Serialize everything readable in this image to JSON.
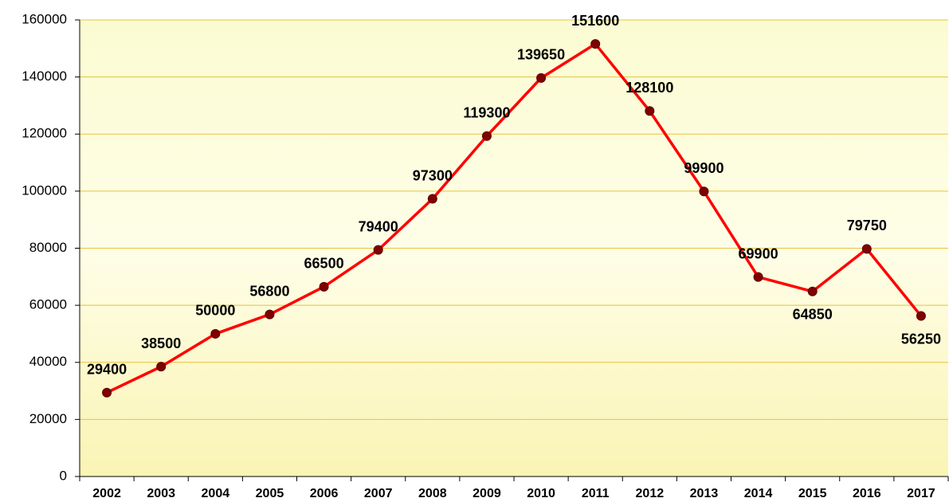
{
  "chart_data": {
    "type": "line",
    "categories": [
      "2002",
      "2003",
      "2004",
      "2005",
      "2006",
      "2007",
      "2008",
      "2009",
      "2010",
      "2011",
      "2012",
      "2013",
      "2014",
      "2015",
      "2016",
      "2017"
    ],
    "series": [
      {
        "name": null,
        "color": "#ff0000",
        "marker_color": "#800000",
        "values": [
          29400,
          38500,
          50000,
          56800,
          66500,
          79400,
          97300,
          119300,
          139650,
          151600,
          128100,
          99900,
          69900,
          64850,
          79750,
          56250
        ]
      }
    ],
    "ylim": [
      0,
      160000
    ],
    "yticks": [
      0,
      20000,
      40000,
      60000,
      80000,
      100000,
      120000,
      140000,
      160000
    ],
    "grid": true
  }
}
